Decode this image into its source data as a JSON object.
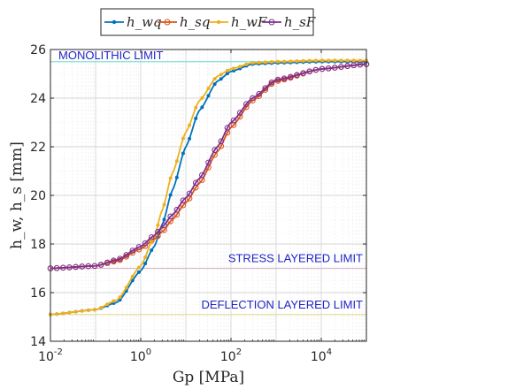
{
  "chart_data": {
    "type": "line",
    "x_scale": "log",
    "xlim": [
      0.01,
      100000
    ],
    "ylim": [
      14,
      26
    ],
    "x_ticks": [
      0.01,
      1,
      100,
      10000
    ],
    "x_tick_labels": [
      {
        "base": "10",
        "exp": "-2"
      },
      {
        "base": "10",
        "exp": "0"
      },
      {
        "base": "10",
        "exp": "2"
      },
      {
        "base": "10",
        "exp": "4"
      }
    ],
    "y_ticks": [
      14,
      16,
      18,
      20,
      22,
      24,
      26
    ],
    "y_tick_labels": [
      "14",
      "16",
      "18",
      "20",
      "22",
      "24",
      "26"
    ],
    "xlabel": "Gp [MPa]",
    "ylabel": "h_w, h_s [mm]",
    "grid": true,
    "legend_placement": "top-outside",
    "series": [
      {
        "name": "h_wq",
        "color": "#0072BD",
        "marker": "dot",
        "x": [
          0.01,
          0.1,
          0.3,
          1,
          2,
          3,
          5,
          10,
          20,
          50,
          100,
          300,
          1000,
          10000,
          100000
        ],
        "y": [
          15.1,
          15.3,
          15.6,
          16.9,
          17.9,
          18.8,
          20.2,
          22.0,
          23.5,
          24.7,
          25.1,
          25.4,
          25.45,
          25.5,
          25.5
        ]
      },
      {
        "name": "h_sq",
        "color": "#D95319",
        "marker": "circle",
        "x": [
          0.01,
          0.1,
          0.3,
          1,
          2,
          3,
          5,
          10,
          20,
          50,
          100,
          300,
          1000,
          10000,
          100000
        ],
        "y": [
          17.0,
          17.1,
          17.3,
          17.8,
          18.2,
          18.5,
          19.0,
          19.7,
          20.5,
          21.8,
          22.8,
          23.9,
          24.7,
          25.2,
          25.4
        ]
      },
      {
        "name": "h_wF",
        "color": "#EDB120",
        "marker": "dot",
        "x": [
          0.01,
          0.1,
          0.3,
          1,
          2,
          3,
          5,
          10,
          20,
          50,
          100,
          300,
          1000,
          10000,
          100000
        ],
        "y": [
          15.1,
          15.3,
          15.7,
          17.1,
          18.3,
          19.4,
          20.9,
          22.6,
          23.9,
          24.9,
          25.2,
          25.45,
          25.5,
          25.55,
          25.55
        ]
      },
      {
        "name": "h_sF",
        "color": "#7E2F8E",
        "marker": "circle",
        "x": [
          0.01,
          0.1,
          0.3,
          1,
          2,
          3,
          5,
          10,
          20,
          50,
          100,
          300,
          1000,
          10000,
          100000
        ],
        "y": [
          17.0,
          17.1,
          17.35,
          17.9,
          18.35,
          18.7,
          19.2,
          19.9,
          20.7,
          22.0,
          23.0,
          24.0,
          24.75,
          25.2,
          25.4
        ]
      }
    ],
    "reference_lines": [
      {
        "label": "MONOLITHIC LIMIT",
        "y": 25.5,
        "color": "#7fe0d0"
      },
      {
        "label": "STRESS LAYERED LIMIT",
        "y": 17.0,
        "color": "#d8b8d0"
      },
      {
        "label": "DEFLECTION LAYERED LIMIT",
        "y": 15.1,
        "color": "#e6dc9a"
      }
    ]
  }
}
